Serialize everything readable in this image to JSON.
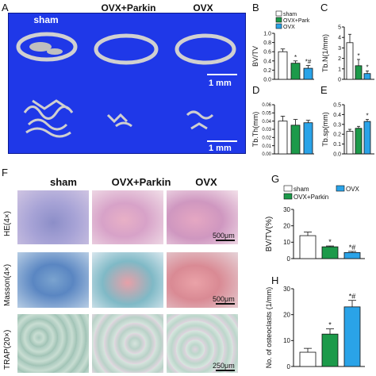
{
  "panel_letters": {
    "A": "A",
    "B": "B",
    "C": "C",
    "D": "D",
    "E": "E",
    "F": "F",
    "G": "G",
    "H": "H"
  },
  "microct": {
    "headers": [
      "sham",
      "OVX+Parkin",
      "OVX"
    ],
    "scale_label": "1 mm"
  },
  "histology": {
    "headers": [
      "sham",
      "OVX+Parkin",
      "OVX"
    ],
    "rows": [
      {
        "label": "HE(4×)",
        "scale": "500μm"
      },
      {
        "label": "Masson(4×)",
        "scale": "500μm"
      },
      {
        "label": "TRAP(20×)",
        "scale": "250μm"
      }
    ]
  },
  "colors": {
    "sham": "#ffffff",
    "ovx_parkin": "#1c9a4a",
    "ovx": "#2aa3e8",
    "microct_bg": "#1f38e8"
  },
  "chart_data": [
    {
      "id": "B",
      "type": "bar",
      "ylabel": "BV/TV",
      "ylim": [
        0,
        1.0
      ],
      "yticks": [
        "0.0",
        "0.2",
        "0.4",
        "0.6",
        "0.8",
        "1.0"
      ],
      "categories": [
        "sham",
        "OVX+Park",
        "OVX"
      ],
      "values": [
        0.6,
        0.35,
        0.24
      ],
      "errors": [
        0.06,
        0.05,
        0.06
      ],
      "annotations": [
        "",
        "*",
        "*#"
      ],
      "legend": [
        "sham",
        "OVX+Park",
        "OVX"
      ]
    },
    {
      "id": "C",
      "type": "bar",
      "ylabel": "Tb.N(1/mm)",
      "ylim": [
        0,
        5
      ],
      "yticks": [
        "0",
        "1",
        "2",
        "3",
        "4",
        "5"
      ],
      "categories": [
        "sham",
        "OVX+Park",
        "OVX"
      ],
      "values": [
        3.5,
        1.3,
        0.55
      ],
      "errors": [
        0.8,
        0.6,
        0.25
      ],
      "annotations": [
        "",
        "*",
        "*"
      ]
    },
    {
      "id": "D",
      "type": "bar",
      "ylabel": "Tb.Th(mm)",
      "ylim": [
        0,
        0.06
      ],
      "yticks": [
        "0.00",
        "0.01",
        "0.02",
        "0.03",
        "0.04",
        "0.05",
        "0.06"
      ],
      "categories": [
        "sham",
        "OVX+Park",
        "OVX"
      ],
      "values": [
        0.04,
        0.035,
        0.038
      ],
      "errors": [
        0.006,
        0.007,
        0.003
      ],
      "annotations": [
        "",
        "",
        ""
      ]
    },
    {
      "id": "E",
      "type": "bar",
      "ylabel": "Tb.sp(mm)",
      "ylim": [
        0,
        0.5
      ],
      "yticks": [
        "0.0",
        "0.1",
        "0.2",
        "0.3",
        "0.4",
        "0.5"
      ],
      "categories": [
        "sham",
        "OVX+Park",
        "OVX"
      ],
      "values": [
        0.23,
        0.26,
        0.33
      ],
      "errors": [
        0.02,
        0.02,
        0.02
      ],
      "annotations": [
        "",
        "",
        "*"
      ]
    },
    {
      "id": "G",
      "type": "bar",
      "ylabel": "BV/TV(%)",
      "ylim": [
        0,
        30
      ],
      "yticks": [
        "0",
        "10",
        "20",
        "30"
      ],
      "categories": [
        "sham",
        "OVX+Parkin",
        "OVX"
      ],
      "values": [
        14,
        7.2,
        3.7
      ],
      "errors": [
        2.2,
        0.5,
        0.7
      ],
      "annotations": [
        "",
        "*",
        "*#"
      ],
      "legend": [
        "sham",
        "OVX",
        "OVX+Parkin"
      ]
    },
    {
      "id": "H",
      "type": "bar",
      "ylabel": "No. of osteoclasts (1/mm)",
      "ylim": [
        0,
        30
      ],
      "yticks": [
        "0",
        "10",
        "20",
        "30"
      ],
      "categories": [
        "sham",
        "OVX+Parkin",
        "OVX"
      ],
      "values": [
        5.5,
        12.5,
        23
      ],
      "errors": [
        1.5,
        2.0,
        2.5
      ],
      "annotations": [
        "",
        "*",
        "*#"
      ]
    }
  ]
}
